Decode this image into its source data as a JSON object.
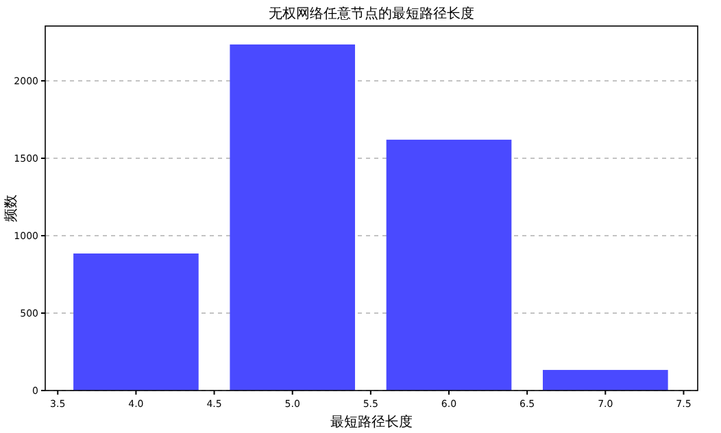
{
  "chart_data": {
    "type": "bar",
    "title": "无权网络任意节点的最短路径长度",
    "xlabel": "最短路径长度",
    "ylabel": "频数",
    "x": [
      4.0,
      5.0,
      6.0,
      7.0
    ],
    "values": [
      885,
      2235,
      1620,
      133
    ],
    "color": "#4a4aff",
    "xlim": [
      3.42,
      7.59
    ],
    "xticks": [
      {
        "value": 3.5,
        "label": "3.5"
      },
      {
        "value": 4,
        "label": "4.0"
      },
      {
        "value": 4.5,
        "label": "4.5"
      },
      {
        "value": 5,
        "label": "5.0"
      },
      {
        "value": 5.5,
        "label": "5.5"
      },
      {
        "value": 6,
        "label": "6.0"
      },
      {
        "value": 6.5,
        "label": "6.5"
      },
      {
        "value": 7,
        "label": "7.0"
      },
      {
        "value": 7.5,
        "label": "7.5"
      }
    ],
    "ylim": [
      0,
      2354
    ],
    "yticks": [
      0,
      500,
      1000,
      1500,
      2000
    ],
    "grid": "y",
    "line_style": "dashed"
  }
}
